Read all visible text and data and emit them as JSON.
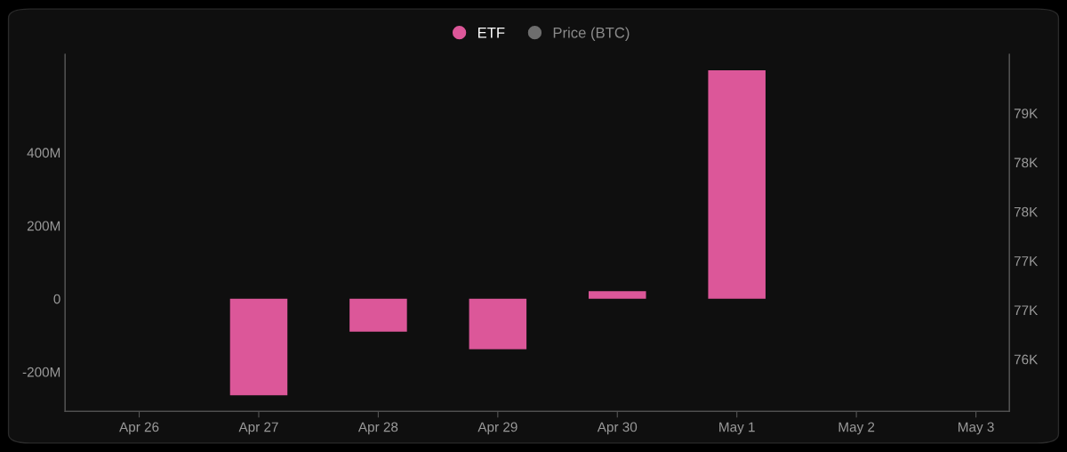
{
  "chart_data": {
    "type": "bar",
    "categories": [
      "Apr 26",
      "Apr 27",
      "Apr 28",
      "Apr 29",
      "Apr 30",
      "May 1",
      "May 2",
      "May 3"
    ],
    "series": [
      {
        "name": "ETF",
        "color": "#dc5799",
        "values": [
          null,
          -264000000,
          -90000000,
          -138000000,
          21000000,
          625000000,
          null,
          null
        ]
      },
      {
        "name": "Price (BTC)",
        "color": "#6e6e6e",
        "values": [
          null,
          null,
          null,
          null,
          null,
          null,
          null,
          null
        ]
      }
    ],
    "ylim": [
      -308000000,
      669000000
    ],
    "yticks": [
      {
        "value": -200000000,
        "label": "-200M"
      },
      {
        "value": 0,
        "label": "0"
      },
      {
        "value": 200000000,
        "label": "200M"
      },
      {
        "value": 400000000,
        "label": "400M"
      }
    ],
    "y2lim": [
      75970,
      79600
    ],
    "y2ticks": [
      {
        "value": 76500,
        "label": "76K"
      },
      {
        "value": 77000,
        "label": "77K"
      },
      {
        "value": 77500,
        "label": "77K"
      },
      {
        "value": 78000,
        "label": "78K"
      },
      {
        "value": 78500,
        "label": "78K"
      },
      {
        "value": 79000,
        "label": "79K"
      }
    ],
    "grid": false,
    "legend": "top"
  }
}
